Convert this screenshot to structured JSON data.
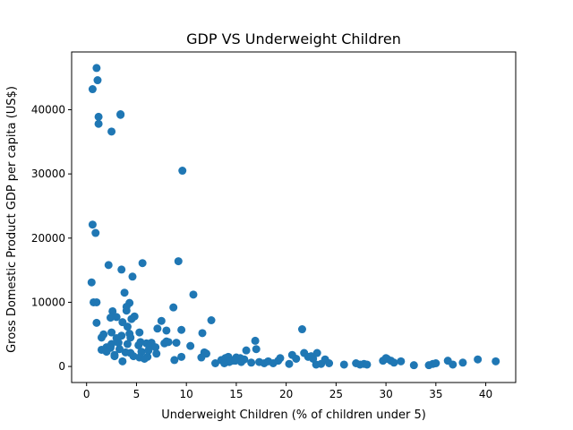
{
  "colors": {
    "marker": "#1f77b4",
    "axes": "#000000",
    "background": "#ffffff"
  },
  "chart_data": {
    "type": "scatter",
    "title": "GDP VS Underweight Children",
    "xlabel": "Underweight Children (% of children under 5)",
    "ylabel": "Gross Domestic Product GDP per capita (US$)",
    "xlim": [
      -1.5,
      43
    ],
    "ylim": [
      -2500,
      49000
    ],
    "xticks": [
      0,
      5,
      10,
      15,
      20,
      25,
      30,
      35,
      40
    ],
    "yticks": [
      0,
      10000,
      20000,
      30000,
      40000
    ],
    "xtick_labels": [
      "0",
      "5",
      "10",
      "15",
      "20",
      "25",
      "30",
      "35",
      "40"
    ],
    "ytick_labels": [
      "0",
      "10000",
      "20000",
      "30000",
      "40000"
    ],
    "grid": false,
    "legend": false,
    "points": [
      [
        1.0,
        46500
      ],
      [
        1.1,
        44600
      ],
      [
        0.6,
        43200
      ],
      [
        1.2,
        38900
      ],
      [
        1.2,
        37800
      ],
      [
        3.4,
        39300
      ],
      [
        3.4,
        39200
      ],
      [
        2.5,
        36600
      ],
      [
        9.6,
        30500
      ],
      [
        0.6,
        22100
      ],
      [
        0.9,
        20800
      ],
      [
        0.5,
        13100
      ],
      [
        0.7,
        10000
      ],
      [
        1.0,
        10000
      ],
      [
        1.0,
        6800
      ],
      [
        2.2,
        15800
      ],
      [
        3.5,
        15100
      ],
      [
        5.6,
        16100
      ],
      [
        9.2,
        16400
      ],
      [
        4.6,
        14000
      ],
      [
        3.8,
        11500
      ],
      [
        10.7,
        11200
      ],
      [
        4.3,
        9900
      ],
      [
        4.0,
        8700
      ],
      [
        4.0,
        9300
      ],
      [
        8.7,
        9200
      ],
      [
        2.6,
        8600
      ],
      [
        2.4,
        7600
      ],
      [
        3.0,
        7700
      ],
      [
        4.5,
        7400
      ],
      [
        4.8,
        7800
      ],
      [
        3.6,
        6900
      ],
      [
        7.5,
        7100
      ],
      [
        12.5,
        7200
      ],
      [
        4.1,
        6200
      ],
      [
        7.1,
        5900
      ],
      [
        8.0,
        5600
      ],
      [
        9.5,
        5700
      ],
      [
        11.6,
        5200
      ],
      [
        1.5,
        4500
      ],
      [
        1.7,
        5000
      ],
      [
        2.5,
        5300
      ],
      [
        3.5,
        4800
      ],
      [
        4.3,
        5100
      ],
      [
        5.3,
        5300
      ],
      [
        3.0,
        4400
      ],
      [
        4.4,
        4500
      ],
      [
        5.4,
        3800
      ],
      [
        6.0,
        3600
      ],
      [
        6.5,
        3700
      ],
      [
        7.8,
        3600
      ],
      [
        8.2,
        3800
      ],
      [
        9.0,
        3700
      ],
      [
        10.4,
        3200
      ],
      [
        2.0,
        3000
      ],
      [
        2.5,
        3500
      ],
      [
        3.2,
        3700
      ],
      [
        4.1,
        3500
      ],
      [
        5.2,
        3300
      ],
      [
        6.3,
        3100
      ],
      [
        6.9,
        3000
      ],
      [
        8.0,
        3900
      ],
      [
        1.5,
        2600
      ],
      [
        2.4,
        2900
      ],
      [
        3.3,
        2700
      ],
      [
        4.4,
        2100
      ],
      [
        5.5,
        2300
      ],
      [
        6.2,
        2500
      ],
      [
        7.0,
        2000
      ],
      [
        11.8,
        2200
      ],
      [
        12.0,
        2000
      ],
      [
        2.0,
        2300
      ],
      [
        2.8,
        1800
      ],
      [
        3.9,
        2200
      ],
      [
        4.7,
        1600
      ],
      [
        5.3,
        1400
      ],
      [
        6.1,
        1500
      ],
      [
        2.8,
        1600
      ],
      [
        3.6,
        800
      ],
      [
        5.8,
        1200
      ],
      [
        8.8,
        1000
      ],
      [
        9.5,
        1500
      ],
      [
        11.5,
        1400
      ],
      [
        12.9,
        500
      ],
      [
        13.5,
        1000
      ],
      [
        13.9,
        1300
      ],
      [
        14.2,
        1500
      ],
      [
        14.6,
        900
      ],
      [
        15.0,
        1400
      ],
      [
        15.4,
        1300
      ],
      [
        15.8,
        1100
      ],
      [
        16.5,
        600
      ],
      [
        14.3,
        700
      ],
      [
        13.8,
        500
      ],
      [
        14.9,
        900
      ],
      [
        15.5,
        700
      ],
      [
        16.0,
        2500
      ],
      [
        16.9,
        4000
      ],
      [
        17.0,
        2700
      ],
      [
        17.3,
        700
      ],
      [
        17.8,
        500
      ],
      [
        18.2,
        800
      ],
      [
        18.7,
        500
      ],
      [
        19.2,
        900
      ],
      [
        19.4,
        1300
      ],
      [
        20.3,
        400
      ],
      [
        20.6,
        1800
      ],
      [
        21.0,
        1200
      ],
      [
        21.6,
        5800
      ],
      [
        21.8,
        2100
      ],
      [
        22.2,
        1500
      ],
      [
        22.5,
        1600
      ],
      [
        22.7,
        1200
      ],
      [
        23.0,
        300
      ],
      [
        23.1,
        2100
      ],
      [
        23.5,
        400
      ],
      [
        23.9,
        1100
      ],
      [
        24.3,
        500
      ],
      [
        25.8,
        300
      ],
      [
        27.0,
        500
      ],
      [
        27.4,
        300
      ],
      [
        27.8,
        400
      ],
      [
        28.1,
        300
      ],
      [
        29.7,
        900
      ],
      [
        30.0,
        1300
      ],
      [
        30.1,
        1200
      ],
      [
        30.5,
        900
      ],
      [
        30.8,
        600
      ],
      [
        31.5,
        800
      ],
      [
        32.8,
        200
      ],
      [
        34.3,
        200
      ],
      [
        34.7,
        400
      ],
      [
        35.0,
        500
      ],
      [
        36.2,
        900
      ],
      [
        36.7,
        300
      ],
      [
        37.7,
        600
      ],
      [
        39.2,
        1100
      ],
      [
        41.0,
        800
      ]
    ]
  }
}
